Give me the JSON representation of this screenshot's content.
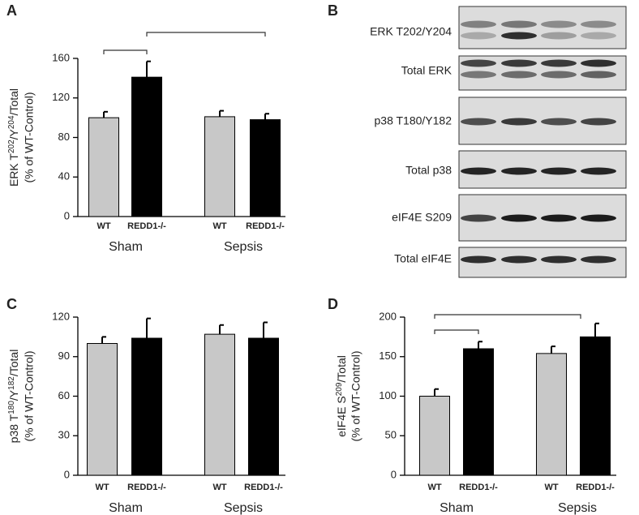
{
  "chart_data": [
    {
      "type": "bar",
      "panel": "A",
      "ylabel": [
        "ERK T",
        "202",
        "/Y",
        "204",
        "/Total"
      ],
      "ylabel_sub": "(% of WT-Control)",
      "categories": [
        "WT",
        "REDD1-/-",
        "WT",
        "REDD1-/-"
      ],
      "groups": [
        "Sham",
        "Sepsis"
      ],
      "values": [
        100,
        141,
        101,
        98
      ],
      "errors": [
        6,
        16,
        6,
        6
      ],
      "colors": [
        "#c8c8c8",
        "#000000",
        "#c8c8c8",
        "#000000"
      ],
      "ylim": [
        0,
        160
      ],
      "yticks": [
        0,
        40,
        80,
        120,
        160
      ]
    },
    {
      "type": "bar",
      "panel": "C",
      "ylabel": [
        "p38 T",
        "180",
        "/Y",
        "182",
        "/Total"
      ],
      "ylabel_sub": "(% of WT-Control)",
      "categories": [
        "WT",
        "REDD1-/-",
        "WT",
        "REDD1-/-"
      ],
      "groups": [
        "Sham",
        "Sepsis"
      ],
      "values": [
        100,
        104,
        107,
        104
      ],
      "errors": [
        5,
        15,
        7,
        12
      ],
      "colors": [
        "#c8c8c8",
        "#000000",
        "#c8c8c8",
        "#000000"
      ],
      "ylim": [
        0,
        120
      ],
      "yticks": [
        0,
        30,
        60,
        90,
        120
      ]
    },
    {
      "type": "bar",
      "panel": "D",
      "ylabel": [
        "eIF4E S",
        "209",
        "/Total"
      ],
      "ylabel_sub": "(% of WT-Control)",
      "categories": [
        "WT",
        "REDD1-/-",
        "WT",
        "REDD1-/-"
      ],
      "groups": [
        "Sham",
        "Sepsis"
      ],
      "values": [
        100,
        160,
        154,
        175
      ],
      "errors": [
        9,
        9,
        9,
        17
      ],
      "colors": [
        "#c8c8c8",
        "#000000",
        "#c8c8c8",
        "#000000"
      ],
      "ylim": [
        0,
        200
      ],
      "yticks": [
        0,
        50,
        100,
        150,
        200
      ]
    }
  ],
  "blot_panel": {
    "panel": "B",
    "rows": [
      "ERK T202/Y204",
      "Total ERK",
      "p38 T180/Y182",
      "Total p38",
      "eIF4E S209",
      "Total eIF4E"
    ]
  }
}
